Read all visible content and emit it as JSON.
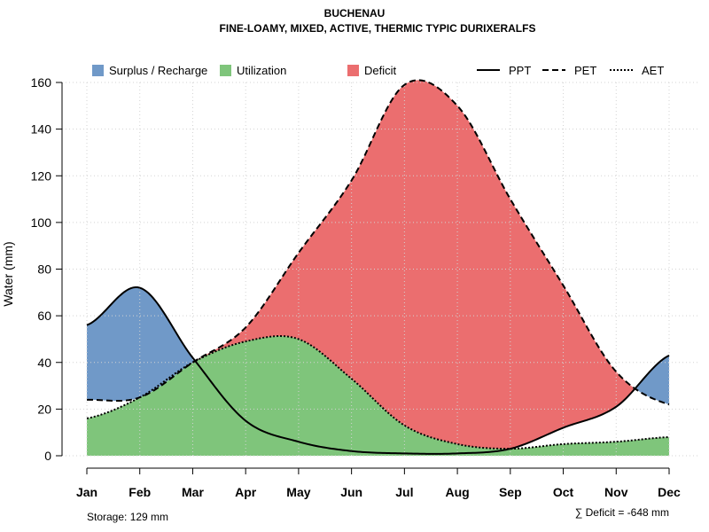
{
  "chart_data": {
    "type": "area",
    "title": "BUCHENAU",
    "subtitle": "FINE-LOAMY, MIXED, ACTIVE, THERMIC TYPIC DURIXERALFS",
    "ylabel": "Water (mm)",
    "ylim": [
      0,
      160
    ],
    "yticks": [
      0,
      20,
      40,
      60,
      80,
      100,
      120,
      140,
      160
    ],
    "categories": [
      "Jan",
      "Feb",
      "Mar",
      "Apr",
      "May",
      "Jun",
      "Jul",
      "Aug",
      "Sep",
      "Oct",
      "Nov",
      "Dec"
    ],
    "grid": true,
    "legend_position": "top",
    "series": [
      {
        "name": "PPT",
        "style": "solid",
        "values": [
          56,
          72,
          42,
          15,
          6,
          2,
          1,
          1,
          3,
          12,
          21,
          43
        ]
      },
      {
        "name": "PET",
        "style": "dashed",
        "values": [
          24,
          25,
          40,
          55,
          87,
          118,
          159,
          150,
          110,
          73,
          36,
          22
        ]
      },
      {
        "name": "AET",
        "style": "dotted",
        "values": [
          16,
          25,
          40,
          49,
          50,
          33,
          13,
          5,
          3,
          5,
          6,
          8
        ]
      }
    ],
    "area_legend": [
      {
        "name": "Surplus / Recharge",
        "color": "#7099C8"
      },
      {
        "name": "Utilization",
        "color": "#7FC57B"
      },
      {
        "name": "Deficit",
        "color": "#EB6E6F"
      }
    ],
    "line_legend": [
      {
        "name": "PPT",
        "style": "solid"
      },
      {
        "name": "PET",
        "style": "dashed"
      },
      {
        "name": "AET",
        "style": "dotted"
      }
    ],
    "footer": {
      "storage": "Storage: 129 mm",
      "deficit": "∑ Deficit = -648 mm"
    },
    "colors": {
      "surplus": "#7099C8",
      "utilization": "#7FC57B",
      "deficit": "#EB6E6F",
      "grid": "#d3d3d3"
    }
  }
}
